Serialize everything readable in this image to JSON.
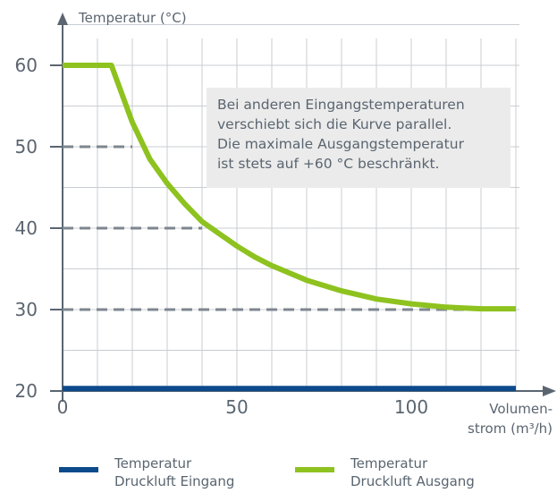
{
  "chart_data": {
    "type": "line",
    "title": "",
    "ylabel": "Temperatur (°C)",
    "xlabel": [
      "Volumen-",
      "strom (m³/h)"
    ],
    "xlim": [
      0,
      130
    ],
    "ylim": [
      20,
      60
    ],
    "x_ticks": [
      0,
      50,
      100
    ],
    "y_ticks": [
      20,
      30,
      40,
      50,
      60
    ],
    "grid": true,
    "series": [
      {
        "name": "Temperatur Druckluft Eingang",
        "color": "#0d4a8c",
        "x": [
          0,
          130
        ],
        "y": [
          20.3,
          20.3
        ]
      },
      {
        "name": "Temperatur Druckluft Ausgang",
        "color": "#8ec21f",
        "x": [
          0,
          14,
          20,
          25,
          30,
          35,
          40,
          45,
          50,
          55,
          60,
          70,
          80,
          90,
          100,
          110,
          120,
          130
        ],
        "y": [
          60,
          60,
          53,
          48.5,
          45.5,
          43,
          40.8,
          39.3,
          37.8,
          36.5,
          35.4,
          33.6,
          32.3,
          31.3,
          30.7,
          30.3,
          30.1,
          30.1
        ]
      }
    ],
    "reference_lines": [
      {
        "y": 50,
        "x_end": 20
      },
      {
        "y": 40,
        "x_end": 40
      },
      {
        "y": 30,
        "x_end": 130
      }
    ],
    "annotation": [
      "Bei anderen Eingangstemperaturen",
      "verschiebt sich die Kurve parallel.",
      "Die maximale Ausgangstemperatur",
      "ist stets auf +60 °C beschränkt."
    ],
    "legend_placement": "bottom",
    "legend": [
      {
        "lines": [
          "Temperatur",
          "Druckluft Eingang"
        ],
        "color": "#0d4a8c"
      },
      {
        "lines": [
          "Temperatur",
          "Druckluft Ausgang"
        ],
        "color": "#8ec21f"
      }
    ],
    "colors": {
      "grid": "#c9cdd2",
      "axis": "#5a6570",
      "dash": "#7e868f"
    }
  }
}
